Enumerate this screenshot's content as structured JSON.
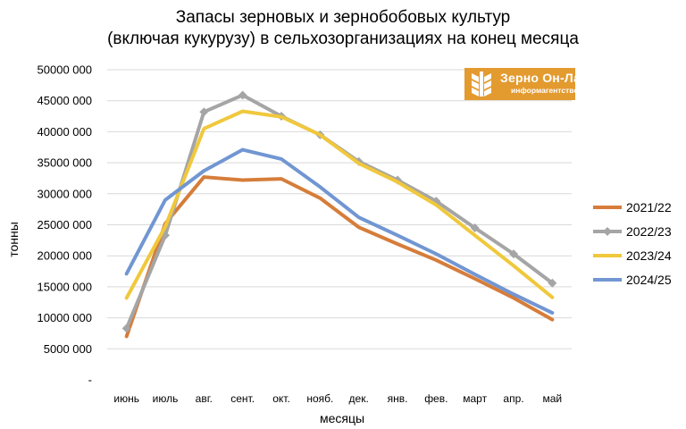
{
  "chart_data": {
    "type": "line",
    "title": "Запасы зерновых и зернобобовых культур (включая кукурузу) в сельхозорганизациях на конец месяца",
    "title_lines": [
      "Запасы зерновых и зернобобовых культур",
      "(включая кукурузу) в сельхозорганизациях на конец месяца"
    ],
    "xlabel": "месяцы",
    "ylabel": "тонны",
    "ylim": [
      0,
      50000000
    ],
    "y_ticks": [
      0,
      5000000,
      10000000,
      15000000,
      20000000,
      25000000,
      30000000,
      35000000,
      40000000,
      45000000,
      50000000
    ],
    "y_tick_labels": [
      "-",
      "5000 000",
      "10000 000",
      "15000 000",
      "20000 000",
      "25000 000",
      "30000 000",
      "35000 000",
      "40000 000",
      "45000 000",
      "50000 000"
    ],
    "categories": [
      "июнь",
      "июль",
      "авг.",
      "сент.",
      "окт.",
      "нояб.",
      "дек.",
      "янв.",
      "фев.",
      "март",
      "апр.",
      "май"
    ],
    "grid": true,
    "legend_position": "right",
    "series": [
      {
        "name": "2021/22",
        "color": "#d67d3a",
        "marker": "none",
        "values": [
          7000000,
          25200000,
          32700000,
          32200000,
          32400000,
          29300000,
          24600000,
          21900000,
          19300000,
          16300000,
          13200000,
          9700000
        ]
      },
      {
        "name": "2022/23",
        "color": "#a5a5a5",
        "marker": "diamond",
        "values": [
          8300000,
          23300000,
          43200000,
          45900000,
          42500000,
          39500000,
          35200000,
          32200000,
          28800000,
          24500000,
          20300000,
          15600000
        ]
      },
      {
        "name": "2023/24",
        "color": "#f0c83c",
        "marker": "none",
        "values": [
          13200000,
          24700000,
          40500000,
          43300000,
          42400000,
          39500000,
          34900000,
          31900000,
          28200000,
          23300000,
          18400000,
          13300000
        ]
      },
      {
        "name": "2024/25",
        "color": "#7196d2",
        "marker": "none",
        "values": [
          17100000,
          29000000,
          33700000,
          37100000,
          35600000,
          31100000,
          26200000,
          23300000,
          20300000,
          17000000,
          13800000,
          10800000
        ]
      }
    ]
  },
  "logo": {
    "name": "Зерно Он-Лайн",
    "subtitle": "информагентство"
  }
}
